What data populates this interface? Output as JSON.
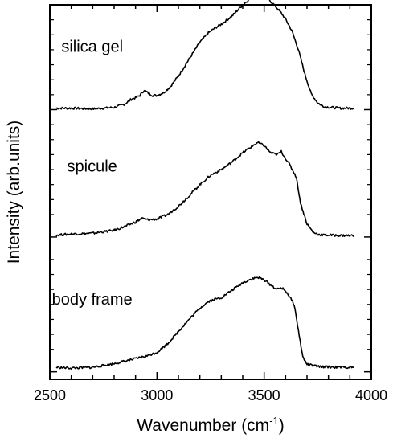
{
  "chart_data": {
    "type": "line",
    "xlabel": "Wavenumber (cm",
    "xlabel_sup": "-1",
    "xlabel_end": ")",
    "ylabel": "Intensity (arb.units)",
    "xlim": [
      2500,
      4000
    ],
    "xticks": [
      "2500",
      "3000",
      "3500",
      "4000"
    ],
    "xtick_values": [
      2500,
      3000,
      3500,
      4000
    ],
    "x_minor_step": 100,
    "ylim": [
      0,
      1
    ],
    "grid": false,
    "series": [
      {
        "name": "silica gel",
        "baseline": 0.72,
        "points": [
          [
            2530,
            0.724
          ],
          [
            2600,
            0.724
          ],
          [
            2700,
            0.722
          ],
          [
            2750,
            0.724
          ],
          [
            2800,
            0.726
          ],
          [
            2850,
            0.735
          ],
          [
            2880,
            0.748
          ],
          [
            2900,
            0.752
          ],
          [
            2920,
            0.758
          ],
          [
            2940,
            0.772
          ],
          [
            2960,
            0.764
          ],
          [
            2980,
            0.758
          ],
          [
            3000,
            0.758
          ],
          [
            3030,
            0.765
          ],
          [
            3060,
            0.78
          ],
          [
            3100,
            0.81
          ],
          [
            3150,
            0.855
          ],
          [
            3200,
            0.9
          ],
          [
            3240,
            0.925
          ],
          [
            3270,
            0.938
          ],
          [
            3300,
            0.948
          ],
          [
            3350,
            0.97
          ],
          [
            3400,
            1.0
          ],
          [
            3440,
            1.02
          ],
          [
            3470,
            1.03
          ],
          [
            3500,
            1.028
          ],
          [
            3520,
            1.015
          ],
          [
            3550,
            0.998
          ],
          [
            3580,
            0.978
          ],
          [
            3600,
            0.962
          ],
          [
            3630,
            0.93
          ],
          [
            3660,
            0.88
          ],
          [
            3690,
            0.815
          ],
          [
            3720,
            0.762
          ],
          [
            3750,
            0.738
          ],
          [
            3780,
            0.728
          ],
          [
            3850,
            0.724
          ],
          [
            3920,
            0.724
          ]
        ]
      },
      {
        "name": "spicule",
        "baseline": 0.38,
        "points": [
          [
            2530,
            0.385
          ],
          [
            2600,
            0.388
          ],
          [
            2700,
            0.39
          ],
          [
            2800,
            0.398
          ],
          [
            2850,
            0.408
          ],
          [
            2900,
            0.42
          ],
          [
            2930,
            0.43
          ],
          [
            2960,
            0.426
          ],
          [
            3000,
            0.428
          ],
          [
            3050,
            0.44
          ],
          [
            3100,
            0.462
          ],
          [
            3150,
            0.49
          ],
          [
            3200,
            0.52
          ],
          [
            3250,
            0.545
          ],
          [
            3300,
            0.56
          ],
          [
            3350,
            0.58
          ],
          [
            3400,
            0.605
          ],
          [
            3450,
            0.625
          ],
          [
            3470,
            0.632
          ],
          [
            3500,
            0.624
          ],
          [
            3530,
            0.605
          ],
          [
            3560,
            0.6
          ],
          [
            3580,
            0.608
          ],
          [
            3600,
            0.59
          ],
          [
            3620,
            0.572
          ],
          [
            3650,
            0.54
          ],
          [
            3670,
            0.47
          ],
          [
            3700,
            0.415
          ],
          [
            3730,
            0.392
          ],
          [
            3760,
            0.386
          ],
          [
            3850,
            0.384
          ],
          [
            3920,
            0.384
          ]
        ]
      },
      {
        "name": "body frame",
        "baseline": 0.02,
        "points": [
          [
            2530,
            0.032
          ],
          [
            2600,
            0.03
          ],
          [
            2700,
            0.032
          ],
          [
            2800,
            0.042
          ],
          [
            2900,
            0.055
          ],
          [
            2950,
            0.062
          ],
          [
            3000,
            0.072
          ],
          [
            3050,
            0.095
          ],
          [
            3100,
            0.128
          ],
          [
            3150,
            0.16
          ],
          [
            3200,
            0.19
          ],
          [
            3240,
            0.208
          ],
          [
            3270,
            0.214
          ],
          [
            3300,
            0.218
          ],
          [
            3350,
            0.238
          ],
          [
            3400,
            0.258
          ],
          [
            3440,
            0.268
          ],
          [
            3470,
            0.272
          ],
          [
            3500,
            0.266
          ],
          [
            3530,
            0.252
          ],
          [
            3560,
            0.24
          ],
          [
            3580,
            0.245
          ],
          [
            3600,
            0.236
          ],
          [
            3620,
            0.22
          ],
          [
            3640,
            0.2
          ],
          [
            3660,
            0.13
          ],
          [
            3680,
            0.06
          ],
          [
            3700,
            0.04
          ],
          [
            3750,
            0.034
          ],
          [
            3850,
            0.032
          ],
          [
            3920,
            0.032
          ]
        ]
      }
    ],
    "annotations": [
      "silica gel",
      "spicule",
      "body frame"
    ]
  }
}
